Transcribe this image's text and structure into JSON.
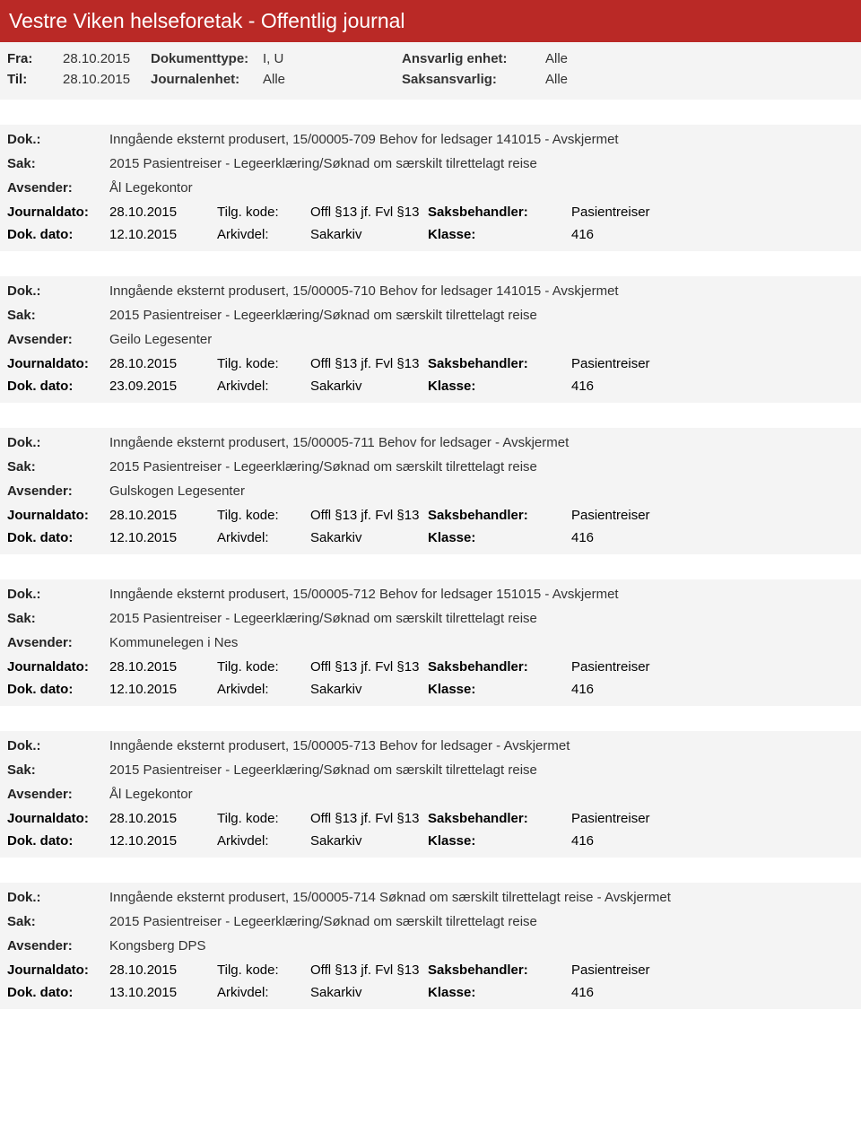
{
  "header": {
    "title": "Vestre Viken helseforetak - Offentlig journal"
  },
  "filter": {
    "fra_label": "Fra:",
    "fra_value": "28.10.2015",
    "til_label": "Til:",
    "til_value": "28.10.2015",
    "doktype_label": "Dokumenttype:",
    "doktype_value": "I, U",
    "journalenhet_label": "Journalenhet:",
    "journalenhet_value": "Alle",
    "ansvarlig_label": "Ansvarlig enhet:",
    "ansvarlig_value": "Alle",
    "saksansvarlig_label": "Saksansvarlig:",
    "saksansvarlig_value": "Alle"
  },
  "labels": {
    "dok": "Dok.:",
    "sak": "Sak:",
    "avsender": "Avsender:",
    "journaldato": "Journaldato:",
    "tilgkode": "Tilg. kode:",
    "saksbehandler": "Saksbehandler:",
    "dokdato": "Dok. dato:",
    "arkivdel": "Arkivdel:",
    "klasse": "Klasse:"
  },
  "entries": [
    {
      "dok": "Inngående eksternt produsert, 15/00005-709 Behov for ledsager 141015 - Avskjermet",
      "sak": "2015 Pasientreiser - Legeerklæring/Søknad om særskilt tilrettelagt reise",
      "avsender": "Ål Legekontor",
      "journaldato": "28.10.2015",
      "tilgkode": "Offl §13 jf. Fvl §13",
      "saksbehandler": "Pasientreiser",
      "dokdato": "12.10.2015",
      "arkivdel": "Sakarkiv",
      "klasse": "416"
    },
    {
      "dok": "Inngående eksternt produsert, 15/00005-710 Behov for ledsager 141015 - Avskjermet",
      "sak": "2015 Pasientreiser - Legeerklæring/Søknad om særskilt tilrettelagt reise",
      "avsender": "Geilo Legesenter",
      "journaldato": "28.10.2015",
      "tilgkode": "Offl §13 jf. Fvl §13",
      "saksbehandler": "Pasientreiser",
      "dokdato": "23.09.2015",
      "arkivdel": "Sakarkiv",
      "klasse": "416"
    },
    {
      "dok": "Inngående eksternt produsert, 15/00005-711 Behov for ledsager - Avskjermet",
      "sak": "2015 Pasientreiser - Legeerklæring/Søknad om særskilt tilrettelagt reise",
      "avsender": "Gulskogen Legesenter",
      "journaldato": "28.10.2015",
      "tilgkode": "Offl §13 jf. Fvl §13",
      "saksbehandler": "Pasientreiser",
      "dokdato": "12.10.2015",
      "arkivdel": "Sakarkiv",
      "klasse": "416"
    },
    {
      "dok": "Inngående eksternt produsert, 15/00005-712 Behov for ledsager 151015 - Avskjermet",
      "sak": "2015 Pasientreiser - Legeerklæring/Søknad om særskilt tilrettelagt reise",
      "avsender": "Kommunelegen i Nes",
      "journaldato": "28.10.2015",
      "tilgkode": "Offl §13 jf. Fvl §13",
      "saksbehandler": "Pasientreiser",
      "dokdato": "12.10.2015",
      "arkivdel": "Sakarkiv",
      "klasse": "416"
    },
    {
      "dok": "Inngående eksternt produsert, 15/00005-713 Behov for ledsager - Avskjermet",
      "sak": "2015 Pasientreiser - Legeerklæring/Søknad om særskilt tilrettelagt reise",
      "avsender": "Ål Legekontor",
      "journaldato": "28.10.2015",
      "tilgkode": "Offl §13 jf. Fvl §13",
      "saksbehandler": "Pasientreiser",
      "dokdato": "12.10.2015",
      "arkivdel": "Sakarkiv",
      "klasse": "416"
    },
    {
      "dok": "Inngående eksternt produsert, 15/00005-714 Søknad om særskilt tilrettelagt reise - Avskjermet",
      "sak": "2015 Pasientreiser - Legeerklæring/Søknad om særskilt tilrettelagt reise",
      "avsender": "Kongsberg DPS",
      "journaldato": "28.10.2015",
      "tilgkode": "Offl §13 jf. Fvl §13",
      "saksbehandler": "Pasientreiser",
      "dokdato": "13.10.2015",
      "arkivdel": "Sakarkiv",
      "klasse": "416"
    }
  ]
}
